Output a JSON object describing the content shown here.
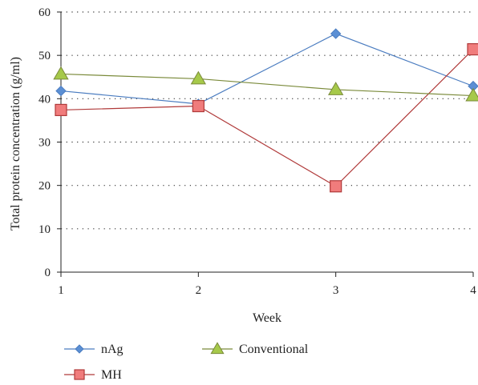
{
  "chart_data": {
    "type": "line",
    "x": [
      1,
      2,
      3,
      4
    ],
    "xlabel": "Week",
    "ylabel": "Total protein concentration (g/ml)",
    "xlim": [
      1,
      4
    ],
    "ylim": [
      0,
      60
    ],
    "x_ticks": [
      "1",
      "2",
      "3",
      "4"
    ],
    "y_ticks": [
      "0",
      "10",
      "20",
      "30",
      "40",
      "50",
      "60"
    ],
    "y_tick_values": [
      0,
      10,
      20,
      30,
      40,
      50,
      60
    ],
    "grid": "horizontal dotted",
    "legend_placement": "bottom",
    "series": [
      {
        "name": "nAg",
        "values": [
          41.8,
          38.8,
          55.0,
          42.9
        ],
        "color": "#4a7cc0",
        "marker": "diamond",
        "marker_fill": "#5b8fd4"
      },
      {
        "name": "MH",
        "values": [
          37.4,
          38.3,
          19.8,
          51.4
        ],
        "color": "#b03a3a",
        "marker": "square",
        "marker_fill": "#f07c7c"
      },
      {
        "name": "Conventional",
        "values": [
          45.7,
          44.6,
          42.1,
          40.7
        ],
        "color": "#7a8a3a",
        "marker": "triangle",
        "marker_fill": "#a6c94a"
      }
    ]
  }
}
